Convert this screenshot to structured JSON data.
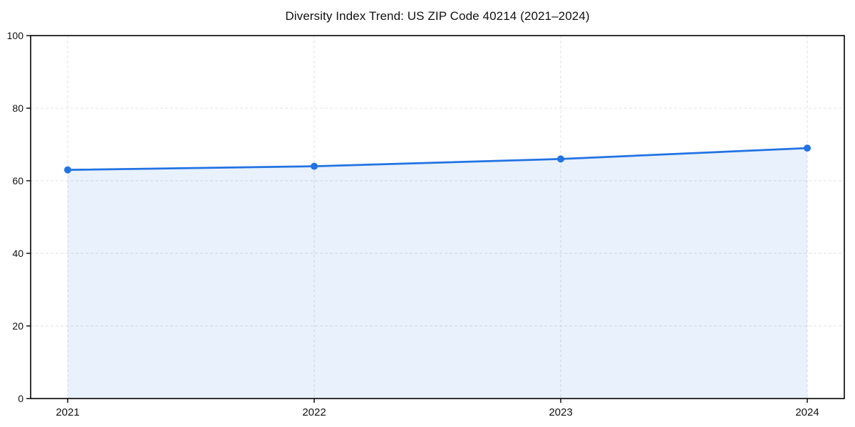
{
  "chart_data": {
    "type": "line",
    "title": "Diversity Index Trend: US ZIP Code 40214 (2021–2024)",
    "x": [
      "2021",
      "2022",
      "2023",
      "2024"
    ],
    "series": [
      {
        "name": "Diversity Index",
        "values": [
          63,
          64,
          66,
          69
        ]
      }
    ],
    "xlabel": "",
    "ylabel": "",
    "ylim": [
      0,
      100
    ],
    "yticks": [
      0,
      20,
      40,
      60,
      80,
      100
    ],
    "grid": true,
    "grid_style": "dashed",
    "legend": "none",
    "area_fill": true,
    "marker": "circle",
    "colors": {
      "line": "#2273e3",
      "marker": "#2273e3",
      "area_opacity": 0.1,
      "grid": "#e0e0e0",
      "spine": "#000000",
      "tick_label": "#111111",
      "title": "#111111",
      "background": "#ffffff"
    }
  }
}
